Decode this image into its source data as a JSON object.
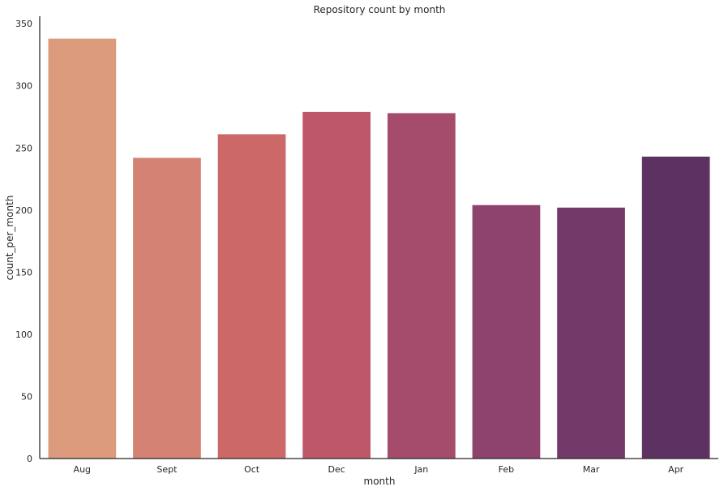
{
  "chart_data": {
    "type": "bar",
    "title": "Repository count by month",
    "xlabel": "month",
    "ylabel": "count_per_month",
    "categories": [
      "Aug",
      "Sept",
      "Oct",
      "Dec",
      "Jan",
      "Feb",
      "Mar",
      "Apr"
    ],
    "values": [
      338,
      242,
      261,
      279,
      278,
      204,
      202,
      243
    ],
    "colors": [
      "#dc9b7d",
      "#d48273",
      "#cd6869",
      "#bf576b",
      "#a54c6c",
      "#8d436d",
      "#733a69",
      "#5e3163"
    ],
    "ylim": [
      0,
      356
    ],
    "yticks": [
      0,
      50,
      100,
      150,
      200,
      250,
      300,
      350
    ],
    "grid": false
  }
}
